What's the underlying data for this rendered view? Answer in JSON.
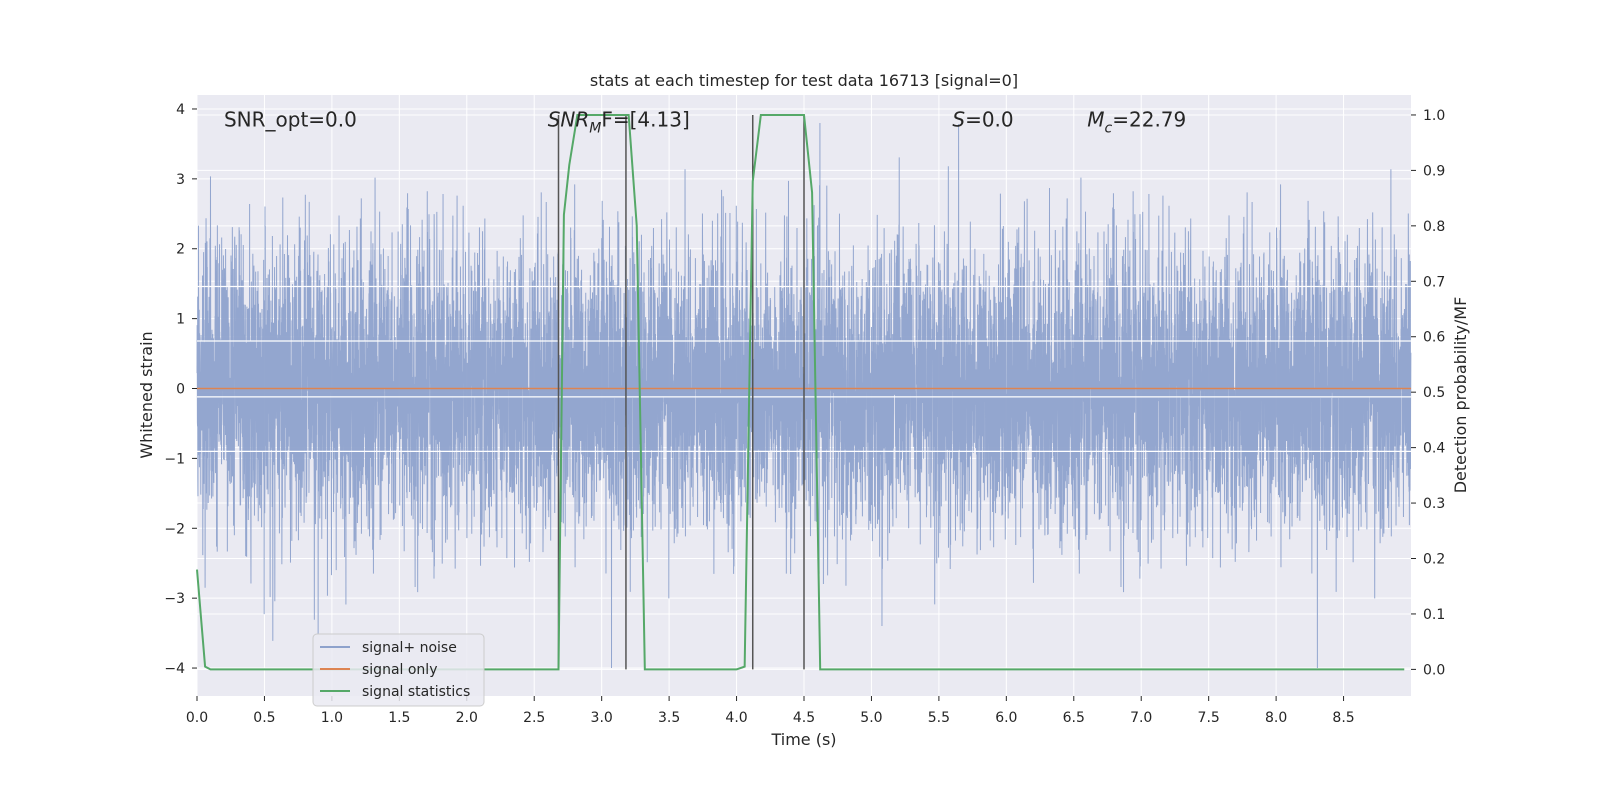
{
  "chart_data": {
    "type": "line",
    "title": "stats at each timestep for test data 16713 [signal=0]",
    "xlabel": "Time (s)",
    "ylabel": "Whitened strain",
    "y2label": "Detection probability/MF",
    "xlim": [
      0,
      9.0
    ],
    "ylim": [
      -4.4,
      4.2
    ],
    "y2lim": [
      -0.048,
      1.036
    ],
    "x_ticks": [
      0.0,
      0.5,
      1.0,
      1.5,
      2.0,
      2.5,
      3.0,
      3.5,
      4.0,
      4.5,
      5.0,
      5.5,
      6.0,
      6.5,
      7.0,
      7.5,
      8.0,
      8.5
    ],
    "x_tick_labels": [
      "0.0",
      "0.5",
      "1.0",
      "1.5",
      "2.0",
      "2.5",
      "3.0",
      "3.5",
      "4.0",
      "4.5",
      "5.0",
      "5.5",
      "6.0",
      "6.5",
      "7.0",
      "7.5",
      "8.0",
      "8.5"
    ],
    "y_ticks": [
      -4,
      -3,
      -2,
      -1,
      0,
      1,
      2,
      3,
      4
    ],
    "y_tick_labels": [
      "−4",
      "−3",
      "−2",
      "−1",
      "0",
      "1",
      "2",
      "3",
      "4"
    ],
    "y2_ticks": [
      0.0,
      0.1,
      0.2,
      0.3,
      0.4,
      0.5,
      0.6,
      0.7,
      0.8,
      0.9,
      1.0
    ],
    "y2_tick_labels": [
      "0.0",
      "0.1",
      "0.2",
      "0.3",
      "0.4",
      "0.5",
      "0.6",
      "0.7",
      "0.8",
      "0.9",
      "1.0"
    ],
    "grid": true,
    "legend_placement": "lower-left",
    "annotations": {
      "snr_opt": "SNR_opt=0.0",
      "snr_mf_base": "SNR",
      "snr_mf_sub": "M",
      "snr_mf_tail": "F=[4.13]",
      "s_label": "S",
      "s_tail": "=0.0",
      "mc_base": "M",
      "mc_sub": "c",
      "mc_tail": "=22.79"
    },
    "annotation_x": [
      0.2,
      2.6,
      5.6,
      6.6
    ],
    "annotation_y": 3.85,
    "series": [
      {
        "name": "signal+ noise",
        "color": "#8ea2cc",
        "description_type": "noise",
        "duration_s": 9.0,
        "sample_rate_hz": 1000,
        "std": 1.0,
        "peak_max": 3.8,
        "peak_min": -4.0
      },
      {
        "name": "signal only",
        "color": "#dd8452",
        "x": [
          0,
          9.0
        ],
        "y": [
          0,
          0
        ]
      },
      {
        "name": "signal statistics",
        "color": "#55a868",
        "axis": "right",
        "x": [
          0.0,
          0.06,
          0.1,
          0.5,
          1.0,
          1.5,
          2.0,
          2.2,
          2.68,
          2.72,
          2.76,
          2.82,
          2.9,
          3.0,
          3.1,
          3.2,
          3.26,
          3.32,
          3.5,
          4.0,
          4.06,
          4.12,
          4.18,
          4.3,
          4.4,
          4.5,
          4.56,
          4.62,
          5.0,
          6.0,
          7.0,
          8.0,
          8.95
        ],
        "y": [
          0.18,
          0.005,
          0.0,
          0.0,
          0.0,
          0.0,
          0.0,
          0.0,
          0.0,
          0.82,
          0.91,
          1.0,
          1.0,
          1.0,
          1.0,
          1.0,
          0.8,
          0.0,
          0.0,
          0.0,
          0.005,
          0.88,
          1.0,
          1.0,
          1.0,
          1.0,
          0.86,
          0.0,
          0.0,
          0.0,
          0.0,
          0.0,
          0.0
        ]
      }
    ],
    "vlines": {
      "color": "#555555",
      "x": [
        2.68,
        3.18,
        4.12,
        4.5
      ],
      "y_from": 0.0,
      "y_to": 1.0
    },
    "hlines_white": {
      "color": "#ffffff",
      "y": [
        -0.12,
        -0.9,
        0.68,
        1.46
      ]
    }
  }
}
